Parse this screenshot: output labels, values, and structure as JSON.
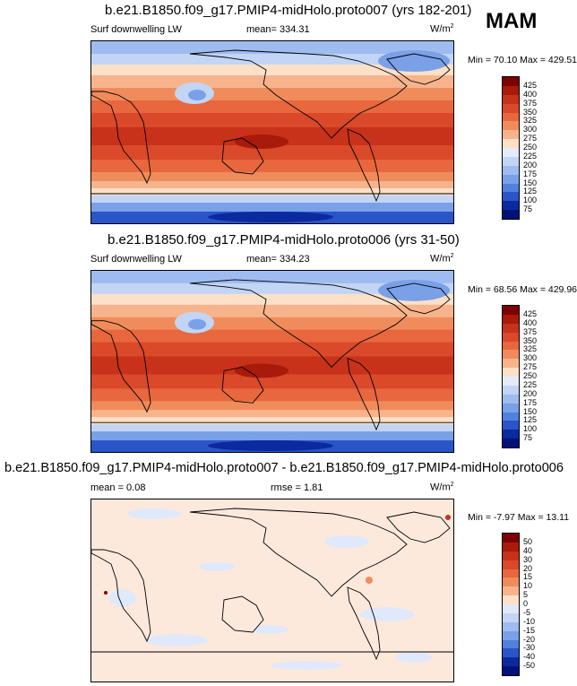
{
  "season": "MAM",
  "panels": [
    {
      "title": "b.e21.B1850.f09_g17.PMIP4-midHolo.proto007 (yrs 182-201)",
      "variable": "Surf downwelling LW",
      "stat": "mean= 334.31",
      "units": "W/m",
      "units_sup": "2",
      "minmax": "Min = 70.10 Max = 429.51",
      "colorbar_labels": [
        "425",
        "400",
        "375",
        "350",
        "325",
        "300",
        "275",
        "250",
        "225",
        "200",
        "175",
        "150",
        "125",
        "100",
        "75"
      ]
    },
    {
      "title": "b.e21.B1850.f09_g17.PMIP4-midHolo.proto006 (yrs 31-50)",
      "variable": "Surf downwelling LW",
      "stat": "mean= 334.23",
      "units": "W/m",
      "units_sup": "2",
      "minmax": "Min = 68.56 Max = 429.96",
      "colorbar_labels": [
        "425",
        "400",
        "375",
        "350",
        "325",
        "300",
        "275",
        "250",
        "225",
        "200",
        "175",
        "150",
        "125",
        "100",
        "75"
      ]
    },
    {
      "title": "b.e21.B1850.f09_g17.PMIP4-midHolo.proto007 - b.e21.B1850.f09_g17.PMIP4-midHolo.proto006",
      "stat_mean": "mean =   0.08",
      "stat_rmse": "rmse =   1.81",
      "units": "W/m",
      "units_sup": "2",
      "minmax": "Min = -7.97 Max = 13.11",
      "colorbar_labels": [
        "50",
        "40",
        "30",
        "20",
        "15",
        "10",
        "5",
        "0",
        "-5",
        "-10",
        "-15",
        "-20",
        "-30",
        "-40",
        "-50"
      ]
    }
  ],
  "colors": {
    "field_scale": [
      "#7f0000",
      "#a81a0a",
      "#c8321a",
      "#d9492a",
      "#e8673e",
      "#f08c5c",
      "#f7b48c",
      "#fde0c8",
      "#e4ecfa",
      "#c3d5f5",
      "#9ebcf0",
      "#7aa0e8",
      "#5280dd",
      "#2a55c8",
      "#0b2aa0",
      "#00127a"
    ],
    "diff_scale": [
      "#7f0000",
      "#a81a0a",
      "#c8321a",
      "#d9492a",
      "#e8673e",
      "#f08c5c",
      "#f7b48c",
      "#fde0c8",
      "#dfe9fb",
      "#c3d5f5",
      "#9ebcf0",
      "#7aa0e8",
      "#5280dd",
      "#2a55c8",
      "#0b2aa0",
      "#00127a"
    ]
  }
}
